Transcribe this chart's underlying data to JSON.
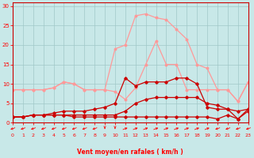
{
  "x": [
    0,
    1,
    2,
    3,
    4,
    5,
    6,
    7,
    8,
    9,
    10,
    11,
    12,
    13,
    14,
    15,
    16,
    17,
    18,
    19,
    20,
    21,
    22,
    23
  ],
  "line_pink_high": [
    8.5,
    8.5,
    8.5,
    8.5,
    9.0,
    10.5,
    10.0,
    8.5,
    8.5,
    8.5,
    19.0,
    20.0,
    27.5,
    28.0,
    27.0,
    26.5,
    24.0,
    21.5,
    15.0,
    14.0,
    8.5,
    8.5,
    5.5,
    10.5
  ],
  "line_pink_low": [
    8.5,
    8.5,
    8.5,
    8.5,
    9.0,
    10.5,
    10.0,
    8.5,
    8.5,
    8.5,
    8.0,
    6.0,
    9.0,
    15.0,
    21.0,
    15.0,
    15.0,
    8.5,
    8.5,
    8.5,
    8.5,
    8.5,
    5.5,
    10.5
  ],
  "line_red_high": [
    1.5,
    1.5,
    2.0,
    2.0,
    2.5,
    3.0,
    3.0,
    3.0,
    3.5,
    4.0,
    5.0,
    11.5,
    9.5,
    10.5,
    10.5,
    10.5,
    11.5,
    11.5,
    10.0,
    4.0,
    3.5,
    3.5,
    1.0,
    3.5
  ],
  "line_red_mid": [
    1.5,
    1.5,
    2.0,
    2.0,
    2.0,
    2.0,
    2.0,
    2.0,
    2.0,
    2.0,
    2.0,
    3.0,
    5.0,
    6.0,
    6.5,
    6.5,
    6.5,
    6.5,
    6.5,
    5.0,
    4.5,
    3.5,
    3.0,
    3.5
  ],
  "line_red_low": [
    1.5,
    1.5,
    2.0,
    2.0,
    2.0,
    2.0,
    1.5,
    1.5,
    1.5,
    1.5,
    1.5,
    1.5,
    1.5,
    1.5,
    1.5,
    1.5,
    1.5,
    1.5,
    1.5,
    1.5,
    1.0,
    2.0,
    1.0,
    3.0
  ],
  "bg_color": "#c8e8e8",
  "grid_color": "#a0c8c8",
  "color_pink": "#ff9999",
  "color_red": "#cc0000",
  "xlabel": "Vent moyen/en rafales ( km/h )",
  "ylim": [
    0,
    31
  ],
  "xlim": [
    0,
    23
  ],
  "yticks": [
    0,
    5,
    10,
    15,
    20,
    25,
    30
  ],
  "xticks": [
    0,
    1,
    2,
    3,
    4,
    5,
    6,
    7,
    8,
    9,
    10,
    11,
    12,
    13,
    14,
    15,
    16,
    17,
    18,
    19,
    20,
    21,
    22,
    23
  ],
  "arrow_angles": [
    225,
    225,
    225,
    225,
    225,
    225,
    225,
    225,
    225,
    270,
    270,
    45,
    45,
    45,
    45,
    45,
    45,
    45,
    45,
    45,
    225,
    225,
    225,
    225
  ]
}
